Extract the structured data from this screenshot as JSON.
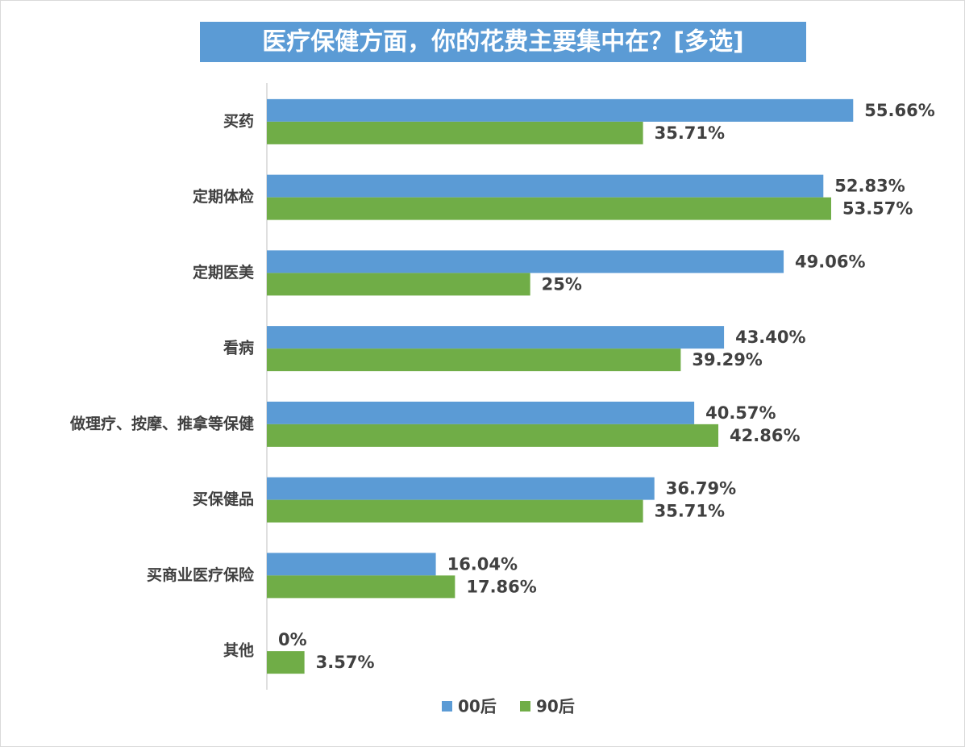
{
  "chart_data": {
    "type": "hbar",
    "title": "医疗保健方面，你的花费主要集中在？[多选]",
    "categories": [
      "买药",
      "定期体检",
      "定期医美",
      "看病",
      "做理疗、按摩、推拿等保健",
      "买保健品",
      "买商业医疗保险",
      "其他"
    ],
    "xlim": [
      0,
      60
    ],
    "series": [
      {
        "name": "00后",
        "color": "#5b9bd5",
        "values": [
          55.66,
          52.83,
          49.06,
          43.4,
          40.57,
          36.79,
          16.04,
          0
        ],
        "value_labels": [
          "55.66%",
          "52.83%",
          "49.06%",
          "43.40%",
          "40.57%",
          "36.79%",
          "16.04%",
          "0%"
        ]
      },
      {
        "name": "90后",
        "color": "#70ad47",
        "values": [
          35.71,
          53.57,
          25,
          39.29,
          42.86,
          35.71,
          17.86,
          3.57
        ],
        "value_labels": [
          "35.71%",
          "53.57%",
          "25%",
          "39.29%",
          "42.86%",
          "35.71%",
          "17.86%",
          "3.57%"
        ]
      }
    ],
    "legend": "bottom"
  }
}
